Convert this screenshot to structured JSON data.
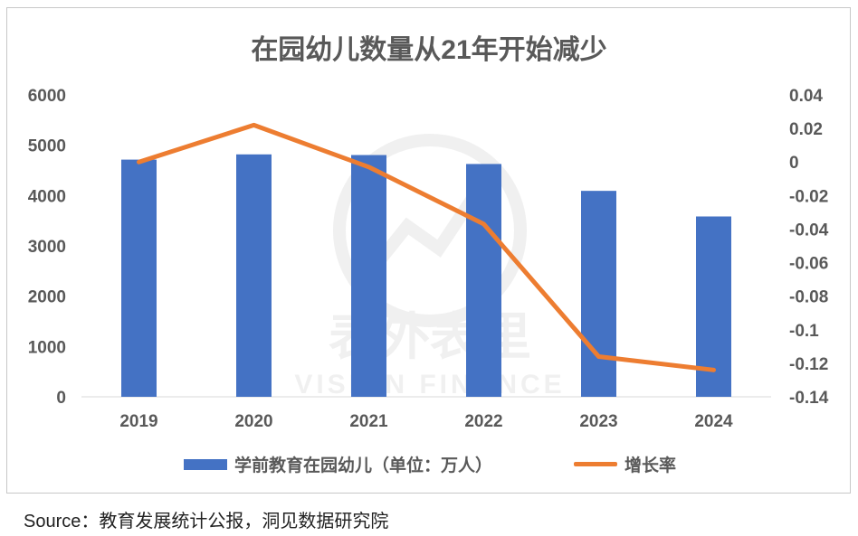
{
  "chart_data": {
    "type": "bar",
    "title": "在园幼儿数量从21年开始减少",
    "categories": [
      "2019",
      "2020",
      "2021",
      "2022",
      "2023",
      "2024"
    ],
    "series": [
      {
        "name": "学前教育在园幼儿（单位：万人）",
        "type": "bar",
        "axis": "left",
        "values": [
          4714,
          4818,
          4805,
          4627,
          4093,
          3584
        ]
      },
      {
        "name": "增长率",
        "type": "line",
        "axis": "right",
        "values": [
          0.0,
          0.022,
          -0.003,
          -0.037,
          -0.116,
          -0.124
        ]
      }
    ],
    "y_left": {
      "ylim": [
        0,
        6000
      ],
      "ticks": [
        "0",
        "1000",
        "2000",
        "3000",
        "4000",
        "5000",
        "6000"
      ]
    },
    "y_right": {
      "ylim": [
        -0.14,
        0.04
      ],
      "ticks": [
        "0.04",
        "0.02",
        "0",
        "-0.02",
        "-0.04",
        "-0.06",
        "-0.08",
        "-0.1",
        "-0.12",
        "-0.14"
      ]
    },
    "colors": {
      "bar": "#4472c4",
      "line": "#ed7d31"
    },
    "legend_position": "bottom"
  },
  "source_text": "Source：教育发展统计公报，洞见数据研究院",
  "watermark": {
    "text_cn": "表外表里",
    "text_en": "VISION FINANCE"
  }
}
